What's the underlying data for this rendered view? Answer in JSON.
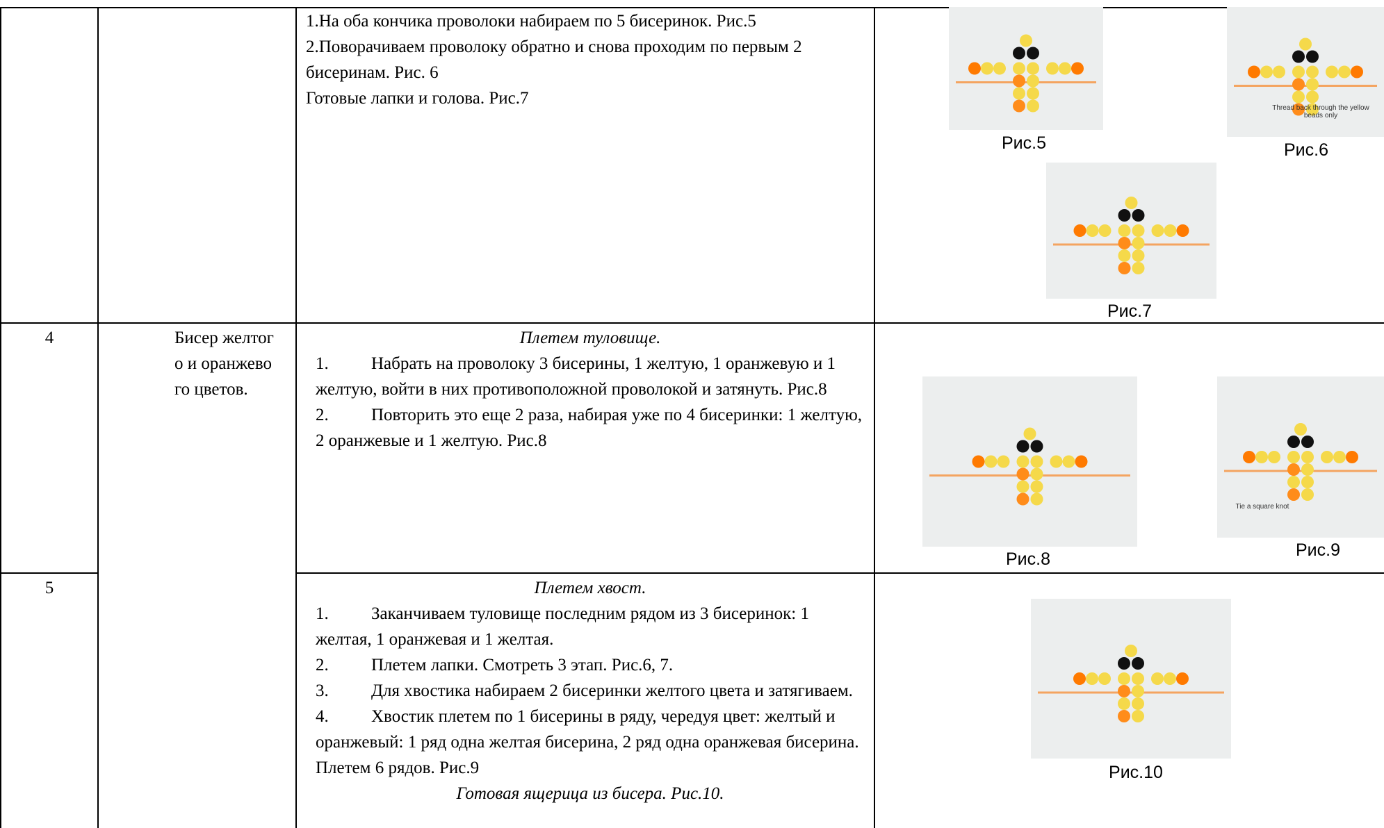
{
  "table": {
    "rows": [
      {
        "steps": [
          "1.На оба кончика проволоки набираем по 5 бисеринок. Рис.5",
          "2.Поворачиваем проволоку обратно и снова проходим по первым 2 бисеринам. Рис. 6",
          "Готовые лапки и голова. Рис.7"
        ],
        "figures": [
          {
            "caption": "Рис.5"
          },
          {
            "caption": "Рис.6",
            "image_text": "Thread back through the yellow beads only"
          },
          {
            "caption": "Рис.7"
          }
        ]
      },
      {
        "number": "4",
        "materials": "Бисер желтого и оранжевого цветов.",
        "heading": "Плетем туловище.",
        "steps": [
          {
            "number": "1.",
            "text": "Набрать на проволоку 3 бисерины, 1 желтую, 1 оранжевую и 1 желтую, войти в них противоположной проволокой и затянуть. Рис.8"
          },
          {
            "number": "2.",
            "text": "Повторить это еще 2 раза, набирая уже по 4 бисеринки: 1 желтую, 2 оранжевые и 1 желтую. Рис.8"
          }
        ],
        "figures": [
          {
            "caption": "Рис.8"
          },
          {
            "caption": "Рис.9",
            "image_text": "Tie a square knot"
          }
        ]
      },
      {
        "number": "5",
        "heading": "Плетем хвост.",
        "steps": [
          {
            "number": "1.",
            "text": "Заканчиваем туловище последним рядом из 3 бисеринок: 1 желтая, 1 оранжевая и 1 желтая."
          },
          {
            "number": "2.",
            "text": "Плетем лапки. Смотреть 3 этап. Рис.6, 7."
          },
          {
            "number": "3.",
            "text": "Для хвостика набираем 2 бисеринки желтого цвета и затягиваем."
          },
          {
            "number": "4.",
            "text": "Хвостик плетем по 1 бисерины в ряду, чередуя цвет: желтый и оранжевый: 1 ряд одна желтая бисерина, 2 ряд одна оранжевая бисерина. Плетем 6 рядов. Рис.9"
          }
        ],
        "footer": "Готовая ящерица из бисера. Рис.10.",
        "figures": [
          {
            "caption": "Рис.10"
          }
        ]
      }
    ]
  }
}
